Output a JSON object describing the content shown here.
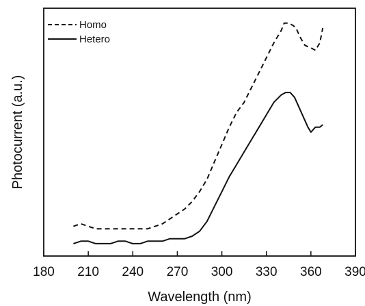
{
  "chart_data": {
    "type": "line",
    "title": "",
    "xlabel": "Wavelength (nm)",
    "ylabel": "Photocurrent (a.u.)",
    "xlim": [
      180,
      390
    ],
    "ylim": [
      0,
      100
    ],
    "xticks": [
      180,
      210,
      240,
      270,
      300,
      330,
      360,
      390
    ],
    "y_tick_labels_shown": false,
    "grid": false,
    "legend_position": "top-left",
    "series": [
      {
        "name": "Homo",
        "line_style": "dashed",
        "color": "#111111",
        "x": [
          200,
          205,
          210,
          215,
          220,
          225,
          230,
          235,
          240,
          245,
          250,
          255,
          260,
          265,
          270,
          275,
          280,
          285,
          290,
          295,
          300,
          305,
          310,
          315,
          320,
          325,
          330,
          335,
          340,
          342,
          345,
          348,
          350,
          353,
          356,
          360,
          363,
          366,
          368
        ],
        "y": [
          12,
          13,
          12,
          11,
          11,
          11,
          11,
          11,
          11,
          11,
          11,
          12,
          13,
          15,
          17,
          19,
          22,
          26,
          31,
          38,
          45,
          52,
          58,
          62,
          68,
          74,
          80,
          86,
          91,
          94,
          94,
          93,
          92,
          88,
          85,
          84,
          83,
          86,
          92
        ]
      },
      {
        "name": "Hetero",
        "line_style": "solid",
        "color": "#111111",
        "x": [
          200,
          205,
          210,
          215,
          220,
          225,
          230,
          235,
          240,
          245,
          250,
          255,
          260,
          265,
          270,
          275,
          280,
          285,
          290,
          295,
          300,
          305,
          310,
          315,
          320,
          325,
          330,
          335,
          340,
          343,
          346,
          349,
          352,
          355,
          358,
          360,
          363,
          366,
          368
        ],
        "y": [
          5,
          6,
          6,
          5,
          5,
          5,
          6,
          6,
          5,
          5,
          6,
          6,
          6,
          7,
          7,
          7,
          8,
          10,
          14,
          20,
          26,
          32,
          37,
          42,
          47,
          52,
          57,
          62,
          65,
          66,
          66,
          64,
          60,
          56,
          52,
          50,
          52,
          52,
          53
        ]
      }
    ]
  }
}
